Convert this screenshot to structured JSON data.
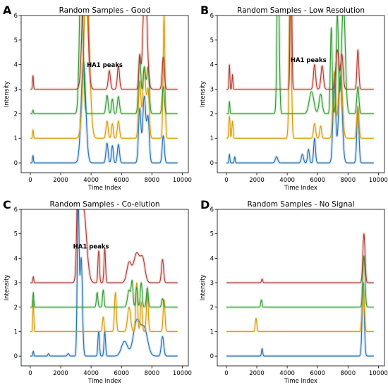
{
  "chart_data": [
    {
      "type": "line",
      "panel_letter": "A",
      "title": "Random Samples - Good",
      "xlabel": "Time Index",
      "ylabel": "Intensity",
      "xlim": [
        -600,
        10400
      ],
      "ylim": [
        -0.4,
        6
      ],
      "xticks": [
        0,
        2000,
        4000,
        6000,
        8000,
        10000
      ],
      "yticks": [
        0,
        1,
        2,
        3,
        4,
        5,
        6
      ],
      "annotation": {
        "text": "HA1 peaks",
        "x": 4900,
        "y": 3.9
      },
      "series": [
        {
          "color": "#1f6fb4",
          "baseline": 0,
          "peaks": [
            [
              180,
              0.3,
              30
            ],
            [
              3500,
              4.1,
              150
            ],
            [
              5050,
              0.8,
              70
            ],
            [
              5400,
              0.7,
              60
            ],
            [
              5800,
              0.75,
              70
            ],
            [
              7200,
              2.2,
              80
            ],
            [
              7500,
              2.7,
              100
            ],
            [
              7750,
              1.8,
              80
            ],
            [
              8750,
              1.1,
              70
            ]
          ]
        },
        {
          "color": "#d99a00",
          "baseline": 1,
          "peaks": [
            [
              180,
              0.35,
              30
            ],
            [
              3700,
              6.5,
              180
            ],
            [
              5050,
              0.7,
              70
            ],
            [
              5400,
              0.6,
              60
            ],
            [
              5800,
              0.7,
              70
            ],
            [
              7200,
              2.3,
              80
            ],
            [
              7500,
              2.8,
              100
            ],
            [
              7750,
              1.9,
              80
            ],
            [
              8800,
              5.0,
              60
            ]
          ]
        },
        {
          "color": "#2e9a2e",
          "baseline": 2,
          "peaks": [
            [
              180,
              0.15,
              30
            ],
            [
              3350,
              6.5,
              110
            ],
            [
              5050,
              0.75,
              70
            ],
            [
              5400,
              0.6,
              60
            ],
            [
              5800,
              0.7,
              70
            ],
            [
              7200,
              2.3,
              80
            ],
            [
              7500,
              1.9,
              100
            ],
            [
              7750,
              1.8,
              80
            ],
            [
              8750,
              1.1,
              70
            ]
          ]
        },
        {
          "color": "#b03a30",
          "baseline": 3,
          "peaks": [
            [
              180,
              0.55,
              30
            ],
            [
              3600,
              6.5,
              150
            ],
            [
              5200,
              0.75,
              70
            ],
            [
              5800,
              0.95,
              70
            ],
            [
              7200,
              1.3,
              60
            ],
            [
              7550,
              4.5,
              130
            ],
            [
              8750,
              1.3,
              70
            ]
          ]
        }
      ]
    },
    {
      "type": "line",
      "panel_letter": "B",
      "title": "Random Samples - Low Resolution",
      "xlabel": "Time Index",
      "ylabel": "Intensity",
      "xlim": [
        -600,
        10400
      ],
      "ylim": [
        -0.4,
        6
      ],
      "xticks": [
        0,
        2000,
        4000,
        6000,
        8000,
        10000
      ],
      "yticks": [
        0,
        1,
        2,
        3,
        4,
        5,
        6
      ],
      "annotation": {
        "text": "HA1 peaks",
        "x": 5400,
        "y": 4.1
      },
      "series": [
        {
          "color": "#1f6fb4",
          "baseline": 0,
          "peaks": [
            [
              200,
              0.35,
              30
            ],
            [
              550,
              0.25,
              30
            ],
            [
              3300,
              0.25,
              80
            ],
            [
              5000,
              0.35,
              70
            ],
            [
              5400,
              0.55,
              60
            ],
            [
              5800,
              1.0,
              60
            ],
            [
              7100,
              3.2,
              90
            ],
            [
              7500,
              3.5,
              120
            ],
            [
              8650,
              2.2,
              70
            ]
          ]
        },
        {
          "color": "#d99a00",
          "baseline": 1,
          "peaks": [
            [
              200,
              0.9,
              40
            ],
            [
              400,
              0.7,
              40
            ],
            [
              4200,
              6.5,
              70
            ],
            [
              5800,
              0.6,
              70
            ],
            [
              6200,
              0.5,
              60
            ],
            [
              7100,
              2.7,
              90
            ],
            [
              7500,
              3.0,
              120
            ],
            [
              8650,
              1.3,
              70
            ]
          ]
        },
        {
          "color": "#2e9a2e",
          "baseline": 2,
          "peaks": [
            [
              200,
              0.5,
              30
            ],
            [
              3400,
              6.5,
              70
            ],
            [
              5600,
              0.9,
              150
            ],
            [
              6200,
              0.8,
              100
            ],
            [
              6900,
              3.5,
              60
            ],
            [
              7300,
              4.0,
              70
            ],
            [
              7700,
              4.5,
              120
            ],
            [
              8650,
              1.1,
              70
            ]
          ]
        },
        {
          "color": "#b03a30",
          "baseline": 3,
          "peaks": [
            [
              200,
              1.0,
              30
            ],
            [
              400,
              0.6,
              30
            ],
            [
              4250,
              6.5,
              50
            ],
            [
              5800,
              1.0,
              70
            ],
            [
              6300,
              0.95,
              80
            ],
            [
              7300,
              1.6,
              100
            ],
            [
              7600,
              1.4,
              80
            ],
            [
              8650,
              1.6,
              60
            ]
          ]
        }
      ]
    },
    {
      "type": "line",
      "panel_letter": "C",
      "title": "Random Samples - Co-elution",
      "xlabel": "Time Index",
      "ylabel": "Intensity",
      "xlim": [
        -600,
        10400
      ],
      "ylim": [
        -0.4,
        6
      ],
      "xticks": [
        0,
        2000,
        4000,
        6000,
        8000,
        10000
      ],
      "yticks": [
        0,
        1,
        2,
        3,
        4,
        5,
        6
      ],
      "annotation": {
        "text": "HA1 peaks",
        "x": 4000,
        "y": 4.4
      },
      "series": [
        {
          "color": "#1f6fb4",
          "baseline": 0,
          "peaks": [
            [
              200,
              0.2,
              30
            ],
            [
              1200,
              0.1,
              40
            ],
            [
              2500,
              0.1,
              60
            ],
            [
              3150,
              6.5,
              60
            ],
            [
              3350,
              4.0,
              80
            ],
            [
              4500,
              1.0,
              50
            ],
            [
              4900,
              1.0,
              50
            ],
            [
              6200,
              0.6,
              200
            ],
            [
              7000,
              1.4,
              220
            ],
            [
              7500,
              1.1,
              220
            ],
            [
              8700,
              0.8,
              80
            ]
          ]
        },
        {
          "color": "#d99a00",
          "baseline": 1,
          "peaks": [
            [
              200,
              1.3,
              30
            ],
            [
              4800,
              0.6,
              50
            ],
            [
              5600,
              1.6,
              60
            ],
            [
              6500,
              1.0,
              100
            ],
            [
              7000,
              2.0,
              60
            ],
            [
              7300,
              1.2,
              60
            ],
            [
              7700,
              1.6,
              60
            ],
            [
              8800,
              1.3,
              60
            ]
          ]
        },
        {
          "color": "#2e9a2e",
          "baseline": 2,
          "peaks": [
            [
              200,
              0.6,
              30
            ],
            [
              4400,
              0.6,
              50
            ],
            [
              4800,
              0.7,
              50
            ],
            [
              6500,
              0.7,
              100
            ],
            [
              6700,
              1.0,
              60
            ],
            [
              7000,
              0.8,
              60
            ],
            [
              7300,
              1.0,
              60
            ],
            [
              7700,
              0.8,
              60
            ],
            [
              8700,
              0.35,
              60
            ]
          ]
        },
        {
          "color": "#b03a30",
          "baseline": 3,
          "peaks": [
            [
              200,
              0.25,
              30
            ],
            [
              3200,
              6.5,
              100
            ],
            [
              3500,
              3.0,
              200
            ],
            [
              4500,
              1.3,
              50
            ],
            [
              4900,
              1.4,
              50
            ],
            [
              6500,
              0.8,
              150
            ],
            [
              7000,
              1.2,
              200
            ],
            [
              7400,
              0.9,
              150
            ],
            [
              8700,
              0.95,
              70
            ]
          ]
        }
      ]
    },
    {
      "type": "line",
      "panel_letter": "D",
      "title": "Random Samples - No Signal",
      "xlabel": "Time Index",
      "ylabel": "Intensity",
      "xlim": [
        -600,
        10400
      ],
      "ylim": [
        -0.4,
        6
      ],
      "xticks": [
        0,
        2000,
        4000,
        6000,
        8000,
        10000
      ],
      "yticks": [
        0,
        1,
        2,
        3,
        4,
        5,
        6
      ],
      "series": [
        {
          "color": "#1f6fb4",
          "baseline": 0,
          "peaks": [
            [
              2350,
              0.3,
              40
            ],
            [
              9000,
              3.0,
              70
            ]
          ]
        },
        {
          "color": "#d99a00",
          "baseline": 1,
          "peaks": [
            [
              1950,
              0.55,
              50
            ],
            [
              9000,
              1.9,
              70
            ]
          ]
        },
        {
          "color": "#2e9a2e",
          "baseline": 2,
          "peaks": [
            [
              2300,
              0.3,
              40
            ],
            [
              9050,
              2.1,
              70
            ]
          ]
        },
        {
          "color": "#b03a30",
          "baseline": 3,
          "peaks": [
            [
              2350,
              0.15,
              40
            ],
            [
              9050,
              2.0,
              70
            ]
          ]
        }
      ]
    }
  ]
}
